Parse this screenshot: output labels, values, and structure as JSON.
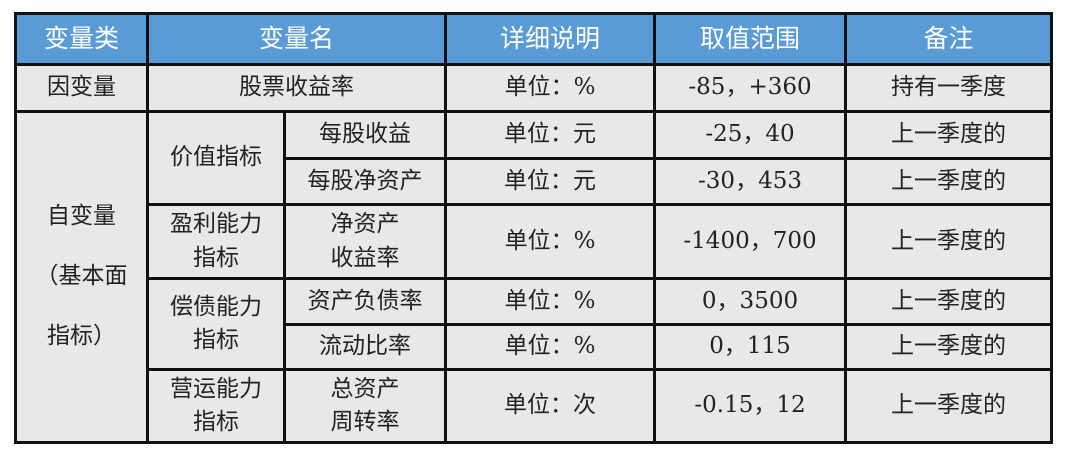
{
  "header": [
    "变量类",
    "变量名",
    "详细说明",
    "取值范围",
    "备注"
  ],
  "dependent": {
    "category": "因变量",
    "name": "股票收益率",
    "desc": "单位：%",
    "range": "-85，+360",
    "note": "持有一季度"
  },
  "independent": {
    "category_lines": [
      "自变量",
      "（基本面",
      "指标）"
    ],
    "groups": [
      {
        "group_lines": [
          "价值指标"
        ],
        "items": [
          {
            "name_lines": [
              "每股收益"
            ],
            "desc": "单位：元",
            "range": "-25，40",
            "note": "上一季度的"
          },
          {
            "name_lines": [
              "每股净资产"
            ],
            "desc": "单位：元",
            "range": "-30，453",
            "note": "上一季度的"
          }
        ]
      },
      {
        "group_lines": [
          "盈利能力",
          "指标"
        ],
        "items": [
          {
            "name_lines": [
              "净资产",
              "收益率"
            ],
            "desc": "单位：%",
            "range": "-1400，700",
            "note": "上一季度的"
          }
        ]
      },
      {
        "group_lines": [
          "偿债能力",
          "指标"
        ],
        "items": [
          {
            "name_lines": [
              "资产负债率"
            ],
            "desc": "单位：%",
            "range": "0，3500",
            "note": "上一季度的"
          },
          {
            "name_lines": [
              "流动比率"
            ],
            "desc": "单位：%",
            "range": "0，115",
            "note": "上一季度的"
          }
        ]
      },
      {
        "group_lines": [
          "营运能力",
          "指标"
        ],
        "items": [
          {
            "name_lines": [
              "总资产",
              "周转率"
            ],
            "desc": "单位：次",
            "range": "-0.15，12",
            "note": "上一季度的"
          }
        ]
      }
    ]
  },
  "colors": {
    "header_bg": "#5b9bd5",
    "cell_bg": "#e8e8e8"
  }
}
